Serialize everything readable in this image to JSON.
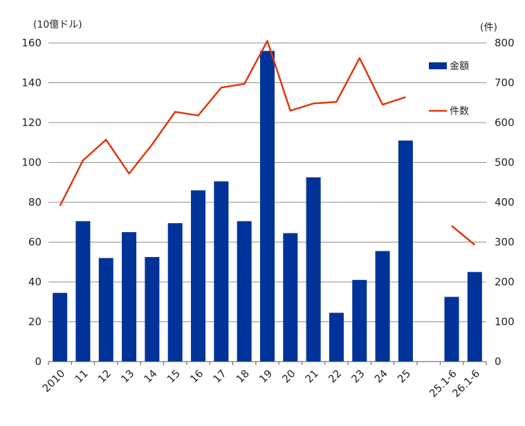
{
  "chart_data": {
    "type": "bar",
    "title": "",
    "categories": [
      "2010",
      "11",
      "12",
      "13",
      "14",
      "15",
      "16",
      "17",
      "18",
      "19",
      "20",
      "21",
      "22",
      "23",
      "24",
      "25",
      "",
      "25.1-6",
      "26.1-6"
    ],
    "y_left_unit": "(10億ドル)",
    "y_right_unit": "(件)",
    "y_left_range": [
      0,
      160
    ],
    "y_left_ticks": [
      "0",
      "20",
      "40",
      "60",
      "80",
      "100",
      "120",
      "140",
      "160"
    ],
    "y_right_range": [
      0,
      800
    ],
    "y_right_ticks": [
      "0",
      "100",
      "200",
      "300",
      "400",
      "500",
      "600",
      "700",
      "800"
    ],
    "grid": true,
    "legend_position": "right",
    "series": [
      {
        "name": "金額",
        "type": "bar",
        "axis": "left",
        "color": "#003399",
        "values": [
          34.5,
          70.5,
          52,
          65,
          52.5,
          69.5,
          86,
          90.5,
          70.5,
          156,
          64.5,
          92.5,
          24.5,
          41,
          55.5,
          111,
          null,
          32.5,
          45
        ]
      },
      {
        "name": "件数",
        "type": "line",
        "axis": "right",
        "color": "#e0360b",
        "values": [
          391,
          505,
          557,
          472,
          545,
          627,
          618,
          688,
          697,
          805,
          630,
          648,
          652,
          762,
          645,
          664,
          null,
          341,
          293
        ]
      }
    ]
  }
}
